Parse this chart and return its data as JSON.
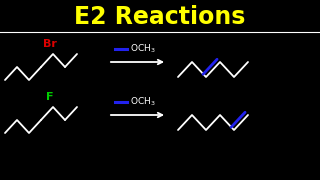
{
  "background_color": "#000000",
  "title": "E2 Reactions",
  "title_color": "#FFFF00",
  "title_fontsize": 17,
  "separator_color": "white",
  "separator_lw": 0.8,
  "Br_text": "Br",
  "Br_color": "#DD0000",
  "Br_fontsize": 8,
  "F_text": "F",
  "F_color": "#00CC00",
  "F_fontsize": 8,
  "OCH3_color": "white",
  "OCH3_fontsize": 6.5,
  "arrow_color": "white",
  "line_color": "white",
  "blue_color": "#2222EE",
  "line_width": 1.3,
  "blue_lw": 2.0,
  "neg_color": "#2222EE"
}
